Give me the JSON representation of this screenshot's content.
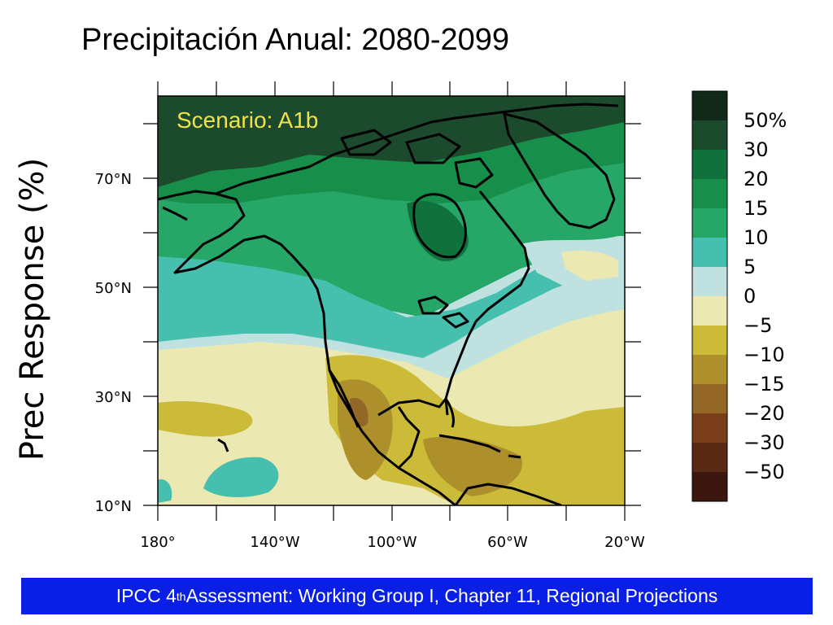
{
  "slide": {
    "title": "Precipitación Anual: 2080-2099",
    "y_label": "Prec  Response  (%)",
    "footer_pre": "IPCC 4",
    "footer_sup": "th",
    "footer_post": " Assessment: Working Group I, Chapter 11, Regional Projections"
  },
  "map": {
    "scenario_label": "Scenario: A1b",
    "lat_labels": [
      "70°N",
      "50°N",
      "30°N",
      "10°N"
    ],
    "lon_labels": [
      "180°",
      "140°W",
      "100°W",
      "60°W",
      "20°W"
    ],
    "lat_range": [
      10,
      86
    ],
    "lon_range": [
      -180,
      -20
    ]
  },
  "legend": {
    "labels": [
      "50%",
      "30",
      "20",
      "15",
      "10",
      "5",
      "0",
      "−5",
      "−10",
      "−15",
      "−20",
      "−30",
      "−50"
    ],
    "colors": [
      "#12291a",
      "#1c4a2c",
      "#10713d",
      "#178f4a",
      "#27a767",
      "#46bfae",
      "#bfe2e0",
      "#ece8b2",
      "#cbbb39",
      "#ad8f2c",
      "#936726",
      "#7b3e1b",
      "#5a2914",
      "#3b1710"
    ]
  }
}
